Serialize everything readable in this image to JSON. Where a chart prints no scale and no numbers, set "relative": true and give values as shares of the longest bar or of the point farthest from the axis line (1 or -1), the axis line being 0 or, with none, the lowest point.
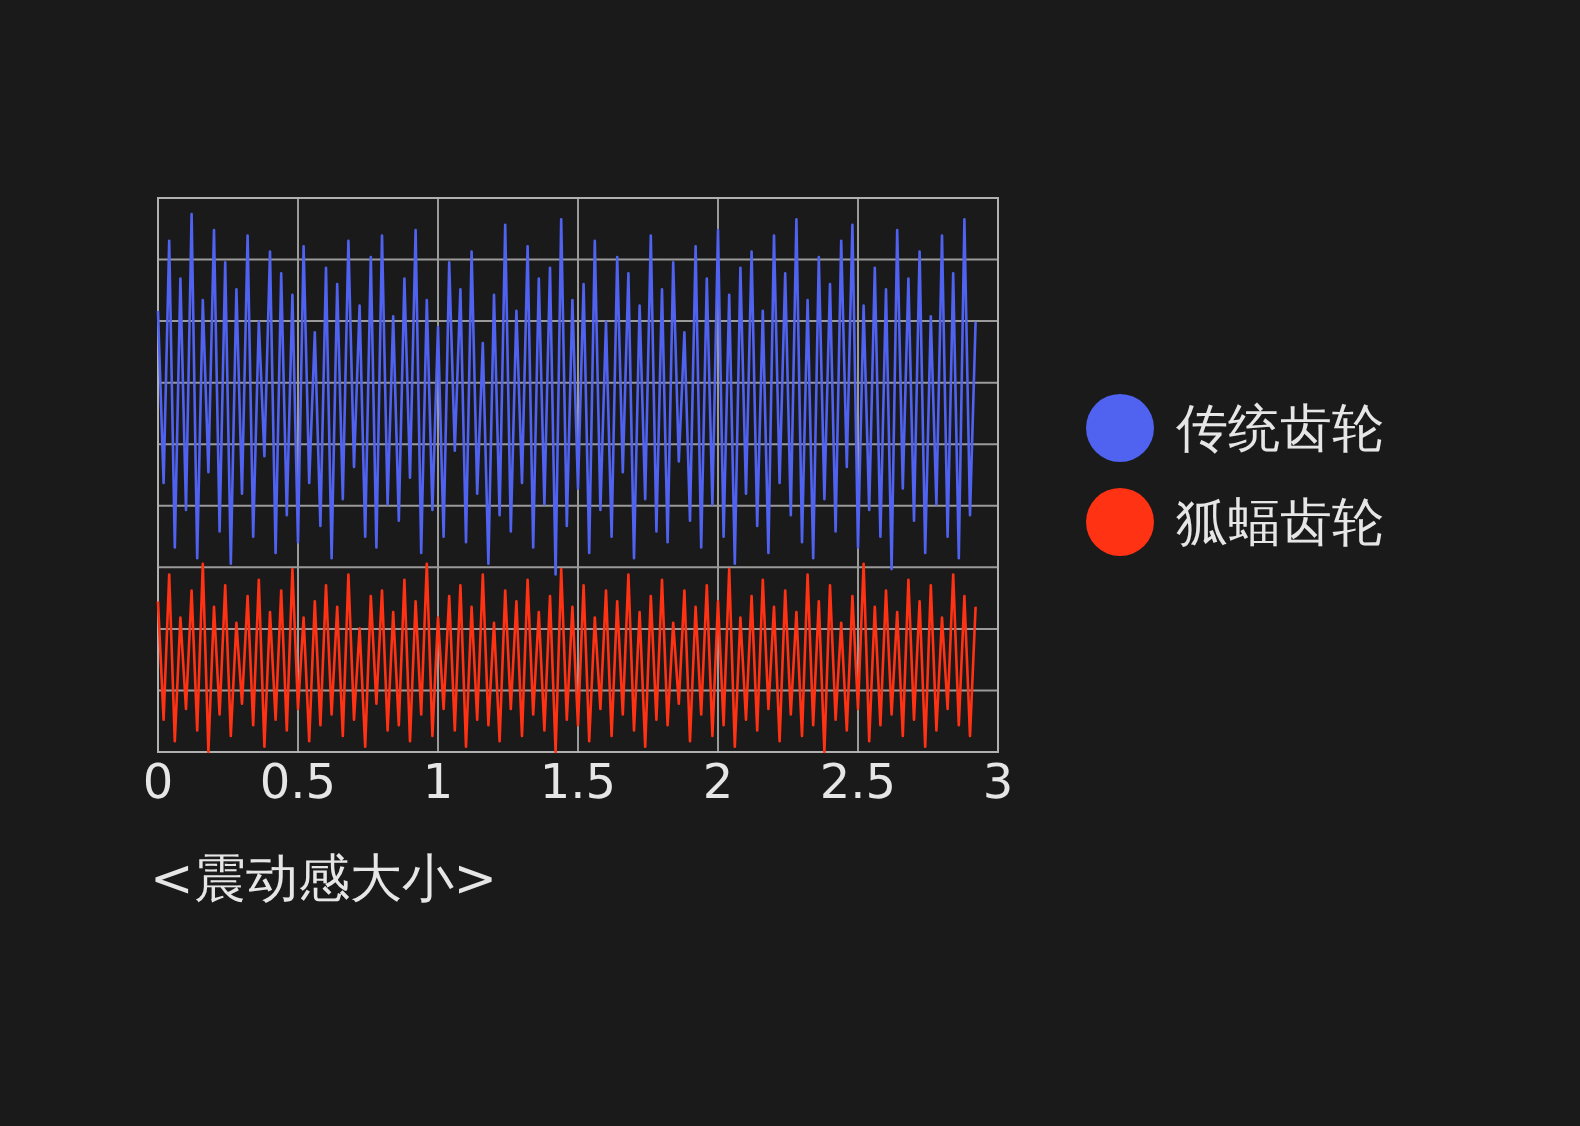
{
  "chart_data": {
    "type": "line",
    "relative": true,
    "xlabel": "<震动感大小>",
    "xlim": [
      0,
      3
    ],
    "xticks": [
      0,
      0.5,
      1,
      1.5,
      2,
      2.5,
      3
    ],
    "grid": true,
    "legend": "right",
    "x": [
      0,
      0.02,
      0.04,
      0.06,
      0.08,
      0.1,
      0.12,
      0.14,
      0.16,
      0.18,
      0.2,
      0.22,
      0.24,
      0.26,
      0.28,
      0.3,
      0.32,
      0.34,
      0.36,
      0.38,
      0.4,
      0.42,
      0.44,
      0.46,
      0.48,
      0.5,
      0.52,
      0.54,
      0.56,
      0.58,
      0.6,
      0.62,
      0.64,
      0.66,
      0.68,
      0.7,
      0.72,
      0.74,
      0.76,
      0.78,
      0.8,
      0.82,
      0.84,
      0.86,
      0.88,
      0.9,
      0.92,
      0.94,
      0.96,
      0.98,
      1,
      1.02,
      1.04,
      1.06,
      1.08,
      1.1,
      1.12,
      1.14,
      1.16,
      1.18,
      1.2,
      1.22,
      1.24,
      1.26,
      1.28,
      1.3,
      1.32,
      1.34,
      1.36,
      1.38,
      1.4,
      1.42,
      1.44,
      1.46,
      1.48,
      1.5,
      1.52,
      1.54,
      1.56,
      1.58,
      1.6,
      1.62,
      1.64,
      1.66,
      1.68,
      1.7,
      1.72,
      1.74,
      1.76,
      1.78,
      1.8,
      1.82,
      1.84,
      1.86,
      1.88,
      1.9,
      1.92,
      1.94,
      1.96,
      1.98,
      2,
      2.02,
      2.04,
      2.06,
      2.08,
      2.1,
      2.12,
      2.14,
      2.16,
      2.18,
      2.2,
      2.22,
      2.24,
      2.26,
      2.28,
      2.3,
      2.32,
      2.34,
      2.36,
      2.38,
      2.4,
      2.42,
      2.44,
      2.46,
      2.48,
      2.5,
      2.52,
      2.54,
      2.56,
      2.58,
      2.6,
      2.62,
      2.64,
      2.66,
      2.68,
      2.7,
      2.72,
      2.74,
      2.76,
      2.78,
      2.8,
      2.82,
      2.84,
      2.86,
      2.88,
      2.9,
      2.92
    ],
    "series": [
      {
        "name": "传统齿轮",
        "color": "#4f62f0",
        "values": [
          0.82,
          0.5,
          0.95,
          0.38,
          0.88,
          0.45,
          1,
          0.36,
          0.84,
          0.52,
          0.97,
          0.41,
          0.91,
          0.35,
          0.86,
          0.48,
          0.96,
          0.4,
          0.8,
          0.55,
          0.93,
          0.37,
          0.89,
          0.44,
          0.85,
          0.39,
          0.94,
          0.5,
          0.78,
          0.42,
          0.9,
          0.36,
          0.87,
          0.47,
          0.95,
          0.53,
          0.83,
          0.4,
          0.92,
          0.38,
          0.96,
          0.46,
          0.81,
          0.43,
          0.88,
          0.51,
          0.97,
          0.37,
          0.84,
          0.45,
          0.79,
          0.4,
          0.91,
          0.56,
          0.86,
          0.39,
          0.93,
          0.48,
          0.76,
          0.35,
          0.85,
          0.44,
          0.98,
          0.41,
          0.82,
          0.5,
          0.94,
          0.38,
          0.88,
          0.46,
          0.9,
          0.33,
          0.99,
          0.42,
          0.84,
          0.49,
          0.87,
          0.37,
          0.95,
          0.45,
          0.8,
          0.4,
          0.92,
          0.52,
          0.89,
          0.36,
          0.83,
          0.47,
          0.96,
          0.41,
          0.86,
          0.39,
          0.91,
          0.54,
          0.78,
          0.43,
          0.94,
          0.38,
          0.88,
          0.46,
          0.97,
          0.4,
          0.85,
          0.35,
          0.9,
          0.48,
          0.93,
          0.42,
          0.82,
          0.37,
          0.96,
          0.5,
          0.89,
          0.44,
          0.99,
          0.39,
          0.84,
          0.36,
          0.92,
          0.47,
          0.87,
          0.41,
          0.95,
          0.53,
          0.98,
          0.38,
          0.83,
          0.45,
          0.9,
          0.4,
          0.86,
          0.34,
          0.97,
          0.49,
          0.88,
          0.43,
          0.93,
          0.37,
          0.81,
          0.46,
          0.96,
          0.4,
          0.89,
          0.36,
          0.99,
          0.44,
          0.8
        ]
      },
      {
        "name": "狐蝠齿轮",
        "color": "#ff3214",
        "values": [
          0.28,
          0.06,
          0.33,
          0.02,
          0.25,
          0.08,
          0.3,
          0.04,
          0.35,
          0.0,
          0.27,
          0.07,
          0.31,
          0.03,
          0.24,
          0.09,
          0.29,
          0.05,
          0.32,
          0.01,
          0.26,
          0.06,
          0.3,
          0.04,
          0.34,
          0.08,
          0.25,
          0.02,
          0.28,
          0.05,
          0.31,
          0.07,
          0.27,
          0.03,
          0.33,
          0.06,
          0.23,
          0.01,
          0.29,
          0.09,
          0.3,
          0.04,
          0.26,
          0.05,
          0.32,
          0.02,
          0.28,
          0.07,
          0.35,
          0.03,
          0.25,
          0.08,
          0.29,
          0.04,
          0.31,
          0.01,
          0.27,
          0.06,
          0.33,
          0.05,
          0.24,
          0.02,
          0.3,
          0.08,
          0.28,
          0.03,
          0.32,
          0.07,
          0.26,
          0.04,
          0.29,
          0.0,
          0.34,
          0.06,
          0.27,
          0.05,
          0.31,
          0.02,
          0.25,
          0.08,
          0.3,
          0.03,
          0.28,
          0.07,
          0.33,
          0.04,
          0.26,
          0.01,
          0.29,
          0.06,
          0.32,
          0.05,
          0.24,
          0.09,
          0.3,
          0.02,
          0.27,
          0.07,
          0.31,
          0.03,
          0.28,
          0.05,
          0.34,
          0.01,
          0.25,
          0.06,
          0.29,
          0.04,
          0.32,
          0.08,
          0.27,
          0.02,
          0.3,
          0.07,
          0.26,
          0.03,
          0.33,
          0.05,
          0.28,
          0.0,
          0.31,
          0.06,
          0.24,
          0.04,
          0.29,
          0.08,
          0.35,
          0.02,
          0.27,
          0.05,
          0.3,
          0.07,
          0.26,
          0.03,
          0.32,
          0.06,
          0.28,
          0.01,
          0.31,
          0.04,
          0.25,
          0.08,
          0.33,
          0.05,
          0.29,
          0.03,
          0.27
        ]
      }
    ]
  }
}
